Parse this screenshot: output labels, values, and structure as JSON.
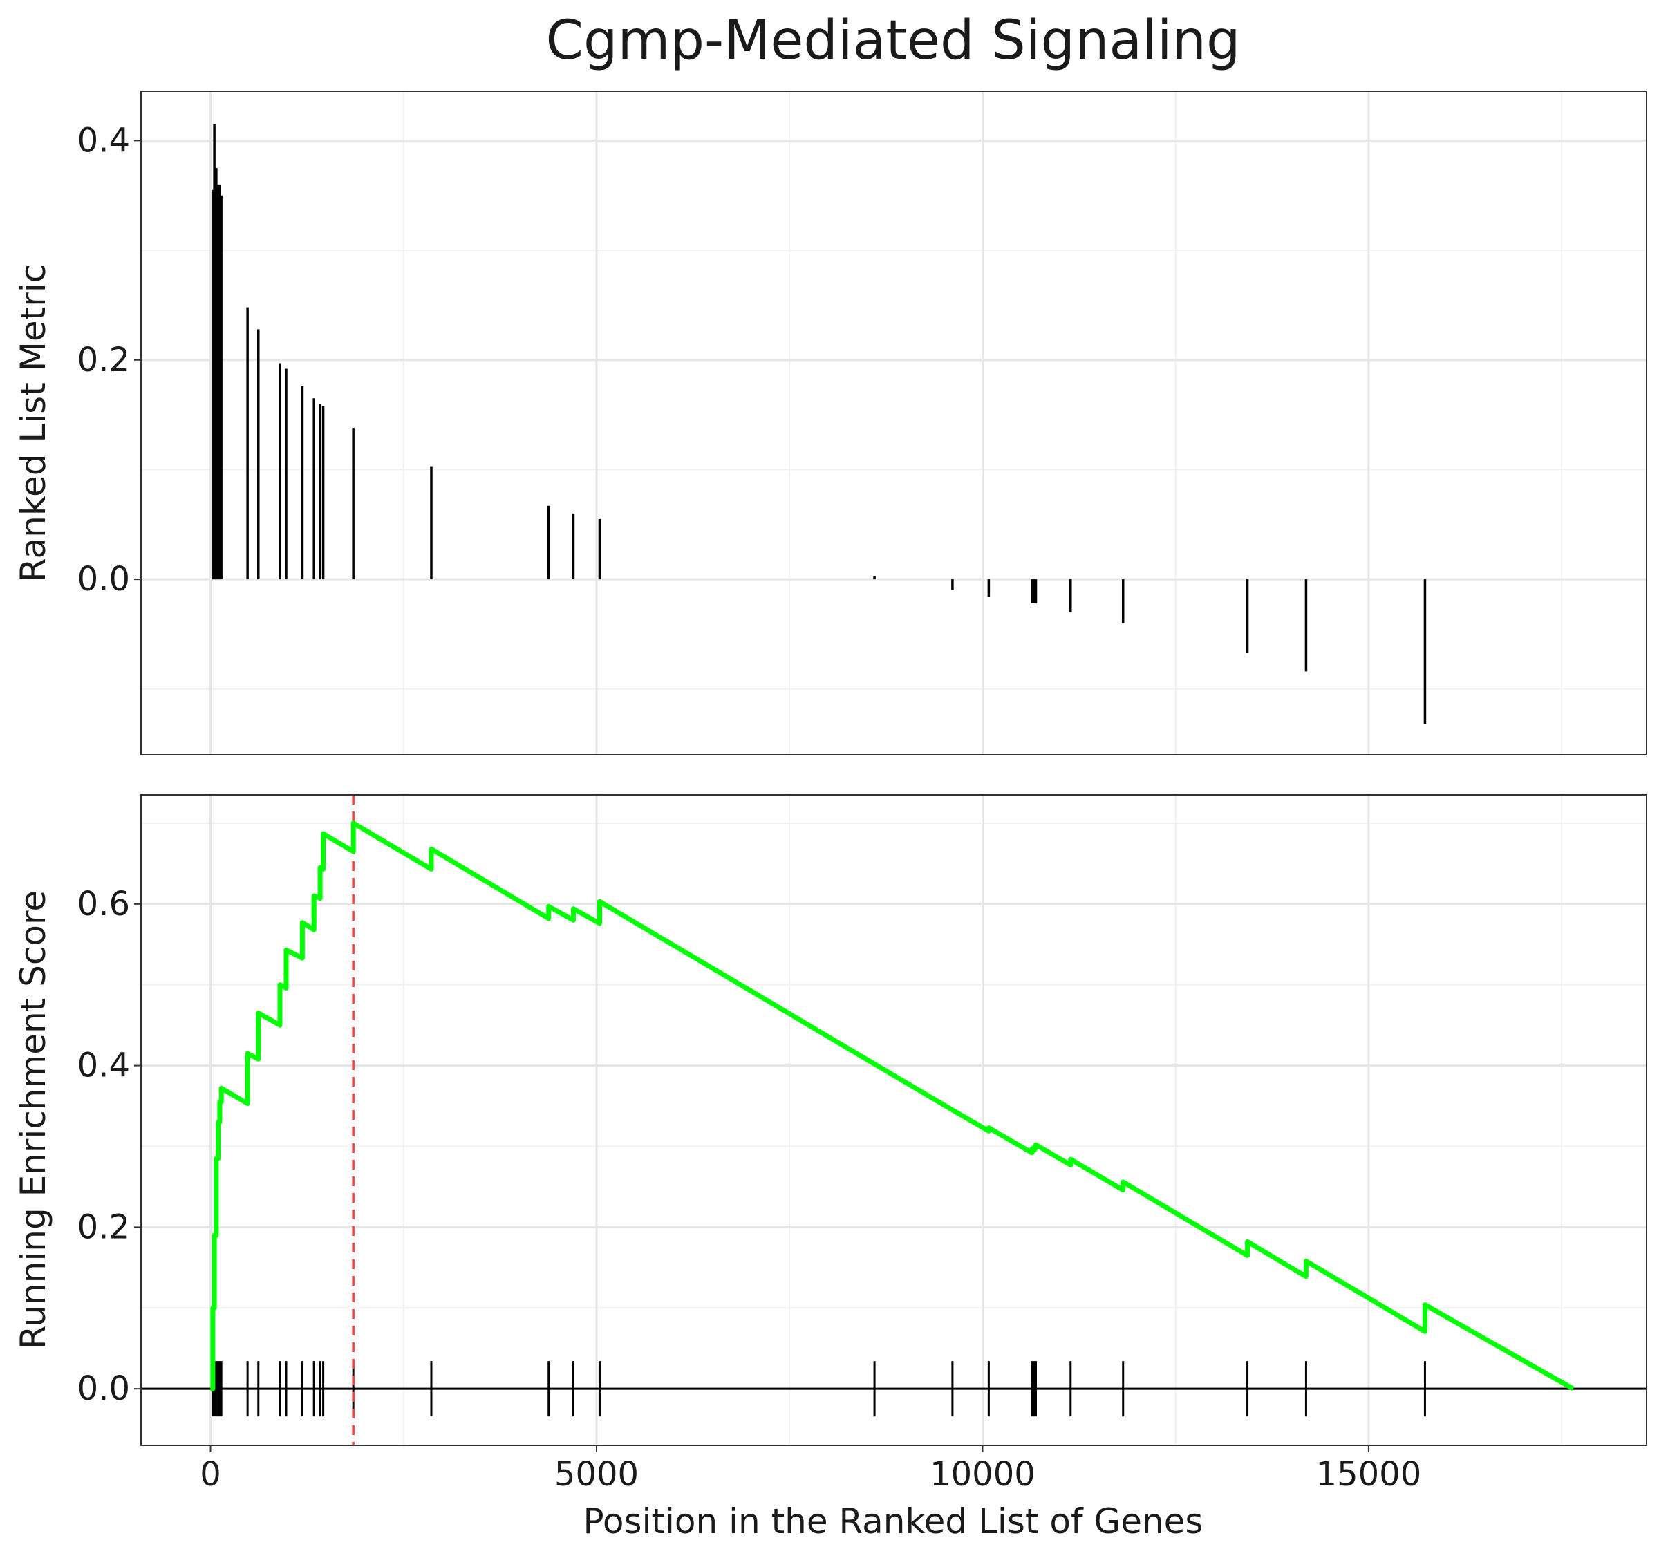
{
  "chart_data": [
    {
      "type": "bar",
      "title": "Cgmp-Mediated Signaling",
      "xlabel": "",
      "ylabel": "Ranked List Metric",
      "xlim": [
        -900,
        18600
      ],
      "ylim": [
        -0.16,
        0.445
      ],
      "x_ticks": [
        0,
        5000,
        10000,
        15000
      ],
      "y_ticks": [
        0.0,
        0.2,
        0.4
      ],
      "y_tick_labels": [
        "0.0",
        "0.2",
        "0.4"
      ],
      "grid": true,
      "color": "#000000",
      "x": [
        30,
        50,
        75,
        100,
        120,
        140,
        480,
        620,
        900,
        980,
        1190,
        1340,
        1420,
        1460,
        1850,
        2860,
        4380,
        4700,
        5040,
        8600,
        9610,
        10080,
        10640,
        10670,
        10690,
        11140,
        11820,
        13430,
        14190,
        15730
      ],
      "values": [
        0.355,
        0.415,
        0.375,
        0.36,
        0.36,
        0.35,
        0.248,
        0.228,
        0.197,
        0.192,
        0.176,
        0.165,
        0.16,
        0.158,
        0.138,
        0.103,
        0.067,
        0.06,
        0.055,
        0.003,
        -0.01,
        -0.016,
        -0.022,
        -0.022,
        -0.022,
        -0.03,
        -0.04,
        -0.067,
        -0.084,
        -0.132
      ]
    },
    {
      "type": "line",
      "title": "",
      "xlabel": "Position in the Ranked List of Genes",
      "ylabel": "Running Enrichment Score",
      "xlim": [
        -900,
        18600
      ],
      "ylim": [
        -0.07,
        0.735
      ],
      "x_ticks": [
        0,
        5000,
        10000,
        15000
      ],
      "x_tick_labels": [
        "0",
        "5000",
        "10000",
        "15000"
      ],
      "y_ticks": [
        0.0,
        0.2,
        0.4,
        0.6
      ],
      "y_tick_labels": [
        "0.0",
        "0.2",
        "0.4",
        "0.6"
      ],
      "grid": true,
      "series": [
        {
          "color": "#00ff00",
          "x": [
            0,
            30,
            30,
            50,
            50,
            75,
            75,
            100,
            100,
            120,
            120,
            140,
            140,
            480,
            480,
            620,
            620,
            900,
            900,
            980,
            980,
            1190,
            1190,
            1340,
            1340,
            1420,
            1420,
            1460,
            1460,
            1850,
            1850,
            2860,
            2860,
            4380,
            4380,
            4700,
            4700,
            5040,
            5040,
            8600,
            8600,
            9610,
            9610,
            10080,
            10080,
            10640,
            10640,
            10670,
            10670,
            10690,
            10690,
            11140,
            11140,
            11820,
            11820,
            13430,
            13430,
            14190,
            14190,
            15730,
            15730,
            17650
          ],
          "y": [
            0.0,
            0.0,
            0.1,
            0.1,
            0.19,
            0.19,
            0.285,
            0.285,
            0.33,
            0.33,
            0.355,
            0.355,
            0.372,
            0.353,
            0.415,
            0.408,
            0.465,
            0.45,
            0.5,
            0.496,
            0.543,
            0.533,
            0.577,
            0.568,
            0.61,
            0.607,
            0.645,
            0.643,
            0.687,
            0.665,
            0.7,
            0.643,
            0.668,
            0.582,
            0.597,
            0.58,
            0.594,
            0.576,
            0.603,
            0.402,
            0.402,
            0.345,
            0.345,
            0.319,
            0.323,
            0.292,
            0.297,
            0.295,
            0.299,
            0.298,
            0.302,
            0.277,
            0.284,
            0.246,
            0.256,
            0.165,
            0.182,
            0.139,
            0.158,
            0.071,
            0.104,
            0.0
          ]
        }
      ],
      "hline": 0.0,
      "peak_marker": {
        "x": 1850,
        "color": "#ee4444",
        "style": "dashed"
      },
      "hit_ticks": [
        30,
        50,
        75,
        100,
        120,
        140,
        480,
        620,
        900,
        980,
        1190,
        1340,
        1420,
        1460,
        1850,
        2860,
        4380,
        4700,
        5040,
        8600,
        9610,
        10080,
        10640,
        10670,
        10690,
        11140,
        11820,
        13430,
        14190,
        15730
      ]
    }
  ]
}
